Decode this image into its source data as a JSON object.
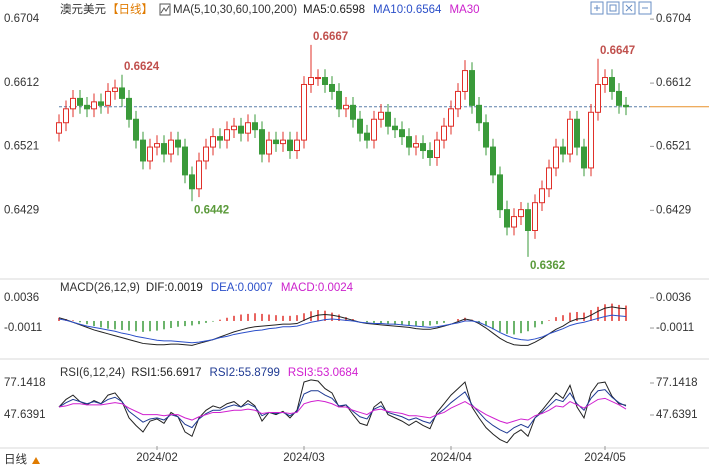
{
  "footer": "日线",
  "chart_data": [
    {
      "type": "candlestick",
      "title": "澳元美元",
      "subtitle": "【日线】",
      "legend_title": "MA(5,10,30,60,100,200)",
      "legend": [
        {
          "name": "MA5:0.6598",
          "color": "#222222"
        },
        {
          "name": "MA10:0.6564",
          "color": "#2b4fc9"
        },
        {
          "name": "MA30",
          "color": "#cc22cc"
        }
      ],
      "up_color": "#e0302a",
      "down_color": "#3a9a3a",
      "high_label_color": "#c0504d",
      "low_label_color": "#5a9a3a",
      "ylim": [
        0.6336,
        0.672
      ],
      "yticks": [
        0.6704,
        0.6612,
        0.6521,
        0.6429
      ],
      "annotations": [
        0.6624,
        0.6667,
        0.6442,
        0.6362,
        0.6647
      ],
      "open": [
        0.654,
        0.6555,
        0.6575,
        0.659,
        0.658,
        0.6575,
        0.6585,
        0.658,
        0.66,
        0.6605,
        0.659,
        0.656,
        0.653,
        0.65,
        0.652,
        0.6525,
        0.651,
        0.653,
        0.652,
        0.648,
        0.646,
        0.65,
        0.652,
        0.6535,
        0.653,
        0.6545,
        0.655,
        0.654,
        0.6555,
        0.6545,
        0.651,
        0.653,
        0.6525,
        0.653,
        0.6515,
        0.653,
        0.661,
        0.662,
        0.662,
        0.661,
        0.66,
        0.6575,
        0.658,
        0.656,
        0.654,
        0.653,
        0.656,
        0.657,
        0.655,
        0.6545,
        0.6535,
        0.652,
        0.6525,
        0.6515,
        0.6505,
        0.653,
        0.655,
        0.6575,
        0.66,
        0.663,
        0.658,
        0.6555,
        0.652,
        0.648,
        0.643,
        0.6405,
        0.642,
        0.643,
        0.64,
        0.644,
        0.646,
        0.649,
        0.652,
        0.651,
        0.656,
        0.652,
        0.649,
        0.657,
        0.661,
        0.662,
        0.66,
        0.658
      ],
      "high": [
        0.6567,
        0.6587,
        0.6602,
        0.6602,
        0.6592,
        0.6597,
        0.6597,
        0.6612,
        0.6617,
        0.6624,
        0.6602,
        0.6572,
        0.6542,
        0.6532,
        0.6537,
        0.6537,
        0.6542,
        0.6542,
        0.6532,
        0.6492,
        0.6512,
        0.6532,
        0.6547,
        0.6547,
        0.6557,
        0.6562,
        0.6562,
        0.6567,
        0.6567,
        0.6557,
        0.6542,
        0.6542,
        0.6542,
        0.6542,
        0.6542,
        0.6622,
        0.6667,
        0.6632,
        0.6632,
        0.6622,
        0.6612,
        0.6592,
        0.6592,
        0.6572,
        0.6552,
        0.6572,
        0.6582,
        0.6582,
        0.6562,
        0.6557,
        0.6547,
        0.6537,
        0.6537,
        0.6527,
        0.6542,
        0.6562,
        0.6587,
        0.6612,
        0.6645,
        0.6642,
        0.6592,
        0.6567,
        0.6532,
        0.6492,
        0.6443,
        0.6432,
        0.6441,
        0.644,
        0.6452,
        0.6472,
        0.6502,
        0.6532,
        0.6532,
        0.6572,
        0.6572,
        0.6532,
        0.6582,
        0.6647,
        0.6632,
        0.6632,
        0.6612,
        0.6592
      ],
      "low": [
        0.6528,
        0.6543,
        0.6563,
        0.6568,
        0.6563,
        0.6563,
        0.6568,
        0.6568,
        0.6588,
        0.6578,
        0.6548,
        0.6518,
        0.6488,
        0.6488,
        0.6508,
        0.6498,
        0.6498,
        0.6508,
        0.6468,
        0.6442,
        0.6448,
        0.6488,
        0.6508,
        0.6518,
        0.6518,
        0.6533,
        0.6528,
        0.6528,
        0.6533,
        0.6498,
        0.6498,
        0.6513,
        0.6513,
        0.6503,
        0.6503,
        0.6518,
        0.6598,
        0.6608,
        0.6598,
        0.6588,
        0.6563,
        0.6563,
        0.6548,
        0.6528,
        0.6518,
        0.6518,
        0.6548,
        0.6538,
        0.6533,
        0.6523,
        0.6508,
        0.6508,
        0.6503,
        0.6493,
        0.6493,
        0.6518,
        0.6538,
        0.6563,
        0.6588,
        0.6568,
        0.6543,
        0.6508,
        0.6468,
        0.6418,
        0.6393,
        0.6393,
        0.6408,
        0.6362,
        0.6388,
        0.6428,
        0.6448,
        0.6478,
        0.6498,
        0.6498,
        0.6508,
        0.6478,
        0.6478,
        0.6558,
        0.6598,
        0.6588,
        0.6568,
        0.6566
      ],
      "close": [
        0.6555,
        0.6575,
        0.659,
        0.658,
        0.6575,
        0.6585,
        0.658,
        0.66,
        0.6605,
        0.659,
        0.656,
        0.653,
        0.65,
        0.652,
        0.6525,
        0.651,
        0.653,
        0.652,
        0.648,
        0.646,
        0.65,
        0.652,
        0.6535,
        0.653,
        0.6545,
        0.655,
        0.654,
        0.6555,
        0.6545,
        0.651,
        0.653,
        0.6525,
        0.653,
        0.6515,
        0.653,
        0.661,
        0.662,
        0.662,
        0.661,
        0.66,
        0.6575,
        0.658,
        0.656,
        0.654,
        0.653,
        0.656,
        0.657,
        0.655,
        0.6545,
        0.6535,
        0.652,
        0.6525,
        0.6515,
        0.6505,
        0.653,
        0.655,
        0.6575,
        0.66,
        0.663,
        0.658,
        0.6555,
        0.652,
        0.648,
        0.643,
        0.6405,
        0.642,
        0.643,
        0.64,
        0.644,
        0.646,
        0.649,
        0.652,
        0.651,
        0.656,
        0.652,
        0.649,
        0.657,
        0.661,
        0.662,
        0.66,
        0.658,
        0.6578
      ]
    },
    {
      "type": "macd",
      "title": "MACD(26,12,9)",
      "ylim": [
        -0.0053,
        0.0056
      ],
      "yticks": [
        0.0036,
        -0.0011
      ],
      "series": [
        {
          "name": "DIF:0.0019",
          "color": "#222222",
          "values": [
            0.0005,
            0.0002,
            -0.0002,
            -0.0006,
            -0.001,
            -0.0014,
            -0.0017,
            -0.002,
            -0.0023,
            -0.0026,
            -0.0029,
            -0.0032,
            -0.0035,
            -0.0036,
            -0.0037,
            -0.0037,
            -0.0036,
            -0.0036,
            -0.0037,
            -0.0038,
            -0.0035,
            -0.0032,
            -0.0029,
            -0.0025,
            -0.0021,
            -0.0017,
            -0.0014,
            -0.0011,
            -0.0009,
            -0.0008,
            -0.0007,
            -0.0006,
            -0.0005,
            -0.0005,
            -0.0004,
            0.0001,
            0.0006,
            0.0009,
            0.001,
            0.0009,
            0.0007,
            0.0004,
            0.0001,
            -0.0002,
            -0.0004,
            -0.0005,
            -0.0006,
            -0.0007,
            -0.0008,
            -0.0009,
            -0.001,
            -0.0012,
            -0.0013,
            -0.0013,
            -0.0011,
            -0.0008,
            -0.0005,
            -0.0001,
            0.0003,
            0.0001,
            -0.0004,
            -0.0011,
            -0.0019,
            -0.0027,
            -0.0033,
            -0.0037,
            -0.0038,
            -0.0038,
            -0.0033,
            -0.0027,
            -0.002,
            -0.0013,
            -0.0008,
            -0.0001,
            0.0003,
            0.0004,
            0.0009,
            0.0015,
            0.002,
            0.0022,
            0.002,
            0.0019
          ]
        },
        {
          "name": "DEA:0.0007",
          "color": "#2b4fc9",
          "values": [
            0.0003,
            0.0001,
            -0.0002,
            -0.0005,
            -0.0008,
            -0.001,
            -0.0012,
            -0.0014,
            -0.0016,
            -0.0019,
            -0.0021,
            -0.0024,
            -0.0026,
            -0.0028,
            -0.003,
            -0.0031,
            -0.0031,
            -0.0032,
            -0.0033,
            -0.0034,
            -0.0033,
            -0.0031,
            -0.0029,
            -0.0026,
            -0.0024,
            -0.0021,
            -0.0019,
            -0.0017,
            -0.0015,
            -0.0014,
            -0.0012,
            -0.0011,
            -0.0009,
            -0.0009,
            -0.0008,
            -0.0005,
            -0.0002,
            0.0,
            0.0002,
            0.0003,
            0.0002,
            0.0001,
            0.0,
            -0.0002,
            -0.0003,
            -0.0004,
            -0.0004,
            -0.0005,
            -0.0005,
            -0.0006,
            -0.0007,
            -0.0008,
            -0.0009,
            -0.001,
            -0.0009,
            -0.0007,
            -0.0005,
            -0.0003,
            0.0,
            0.0,
            -0.0002,
            -0.0007,
            -0.0012,
            -0.0018,
            -0.0023,
            -0.0027,
            -0.0029,
            -0.003,
            -0.0028,
            -0.0025,
            -0.002,
            -0.0016,
            -0.0012,
            -0.0007,
            -0.0004,
            -0.0002,
            0.0001,
            0.0004,
            0.0007,
            0.0009,
            0.0008,
            0.0007
          ]
        },
        {
          "name": "MACD:0.0024",
          "color": "#cc22cc",
          "bar": true,
          "up_color": "#e0302a",
          "down_color": "#3a9a3a",
          "values": [
            0.0005,
            0.0003,
            0.0001,
            -0.0002,
            -0.0005,
            -0.0008,
            -0.001,
            -0.0012,
            -0.0013,
            -0.0014,
            -0.0015,
            -0.0016,
            -0.0017,
            -0.0016,
            -0.0015,
            -0.0013,
            -0.0011,
            -0.0009,
            -0.0008,
            -0.0007,
            -0.0005,
            -0.0003,
            -0.0001,
            0.0002,
            0.0005,
            0.0008,
            0.001,
            0.0011,
            0.0012,
            0.0011,
            0.001,
            0.0009,
            0.0008,
            0.0008,
            0.0009,
            0.0012,
            0.0015,
            0.0017,
            0.0016,
            0.0013,
            0.001,
            0.0006,
            0.0003,
            0.0,
            -0.0002,
            -0.0003,
            -0.0004,
            -0.0005,
            -0.0006,
            -0.0006,
            -0.0007,
            -0.0008,
            -0.0008,
            -0.0007,
            -0.0005,
            -0.0003,
            0.0,
            0.0003,
            0.0005,
            0.0002,
            -0.0003,
            -0.0008,
            -0.0013,
            -0.0017,
            -0.002,
            -0.0021,
            -0.0019,
            -0.0016,
            -0.001,
            -0.0005,
            0.0001,
            0.0006,
            0.0009,
            0.0013,
            0.0014,
            0.0013,
            0.0017,
            0.0022,
            0.0026,
            0.0027,
            0.0025,
            0.0024
          ]
        }
      ]
    },
    {
      "type": "line",
      "title": "RSI(6,12,24)",
      "ylim": [
        19.98,
        93.74
      ],
      "yticks": [
        77.1418,
        47.6391
      ],
      "categories": [
        null,
        null,
        null,
        null,
        null,
        null,
        null,
        null,
        null,
        null,
        null,
        null,
        null,
        null,
        "2024/02",
        null,
        null,
        null,
        null,
        null,
        null,
        null,
        null,
        null,
        null,
        null,
        null,
        null,
        null,
        null,
        null,
        null,
        null,
        null,
        null,
        "2024/03",
        null,
        null,
        null,
        null,
        null,
        null,
        null,
        null,
        null,
        null,
        null,
        null,
        null,
        null,
        null,
        null,
        null,
        null,
        null,
        null,
        "2024/04",
        null,
        null,
        null,
        null,
        null,
        null,
        null,
        null,
        null,
        null,
        null,
        null,
        null,
        null,
        null,
        null,
        null,
        null,
        null,
        null,
        null,
        "2024/05",
        null,
        null,
        null
      ],
      "series": [
        {
          "name": "RSI1:56.6917",
          "color": "#222222",
          "values": [
            55,
            62,
            66,
            60,
            57,
            61,
            58,
            66,
            68,
            60,
            45,
            38,
            32,
            42,
            44,
            40,
            50,
            46,
            32,
            28,
            45,
            52,
            56,
            54,
            58,
            60,
            55,
            61,
            56,
            42,
            50,
            48,
            51,
            45,
            52,
            78,
            80,
            79,
            72,
            68,
            55,
            57,
            48,
            40,
            38,
            55,
            60,
            48,
            45,
            42,
            38,
            42,
            38,
            35,
            50,
            58,
            66,
            72,
            78,
            55,
            45,
            36,
            30,
            25,
            22,
            30,
            34,
            28,
            45,
            52,
            60,
            68,
            63,
            75,
            55,
            45,
            68,
            77,
            78,
            65,
            58,
            56.6917
          ]
        },
        {
          "name": "RSI2:55.8799",
          "color": "#1f3a93",
          "values": [
            55,
            59,
            62,
            60,
            58,
            60,
            58,
            62,
            64,
            60,
            51,
            46,
            41,
            44,
            45,
            43,
            48,
            46,
            39,
            36,
            44,
            49,
            52,
            52,
            55,
            57,
            55,
            58,
            55,
            47,
            50,
            49,
            50,
            47,
            51,
            67,
            70,
            70,
            66,
            63,
            56,
            57,
            51,
            46,
            44,
            53,
            56,
            50,
            48,
            46,
            43,
            45,
            42,
            40,
            48,
            53,
            59,
            64,
            69,
            57,
            50,
            43,
            38,
            34,
            31,
            36,
            39,
            36,
            45,
            50,
            56,
            62,
            60,
            68,
            58,
            52,
            63,
            70,
            71,
            64,
            59,
            55.8799
          ]
        },
        {
          "name": "RSI3:53.0684",
          "color": "#d020d0",
          "values": [
            55,
            56,
            58,
            58,
            57,
            57,
            57,
            58,
            59,
            58,
            54,
            51,
            48,
            48,
            48,
            47,
            48,
            48,
            45,
            43,
            46,
            48,
            50,
            50,
            51,
            52,
            52,
            53,
            52,
            49,
            50,
            50,
            50,
            49,
            50,
            58,
            60,
            61,
            60,
            58,
            55,
            55,
            52,
            50,
            48,
            52,
            53,
            51,
            50,
            49,
            47,
            47,
            46,
            45,
            48,
            50,
            54,
            57,
            60,
            56,
            52,
            48,
            45,
            42,
            40,
            42,
            44,
            43,
            47,
            49,
            52,
            56,
            55,
            60,
            57,
            54,
            58,
            62,
            63,
            60,
            57,
            53.0684
          ]
        }
      ]
    }
  ]
}
